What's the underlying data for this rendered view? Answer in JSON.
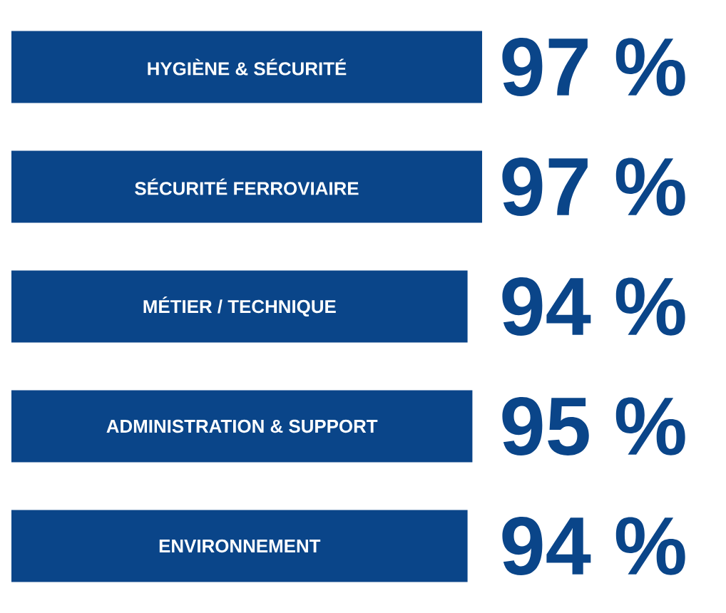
{
  "chart_data": {
    "type": "bar",
    "orientation": "horizontal",
    "categories": [
      "HYGIÈNE & SÉCURITÉ",
      "SÉCURITÉ FERROVIAIRE",
      "MÉTIER / TECHNIQUE",
      "ADMINISTRATION & SUPPORT",
      "ENVIRONNEMENT"
    ],
    "values": [
      97,
      97,
      94,
      95,
      94
    ],
    "value_labels": [
      "97 %",
      "97 %",
      "94 %",
      "95 %",
      "94 %"
    ],
    "color": "#0a4589"
  }
}
